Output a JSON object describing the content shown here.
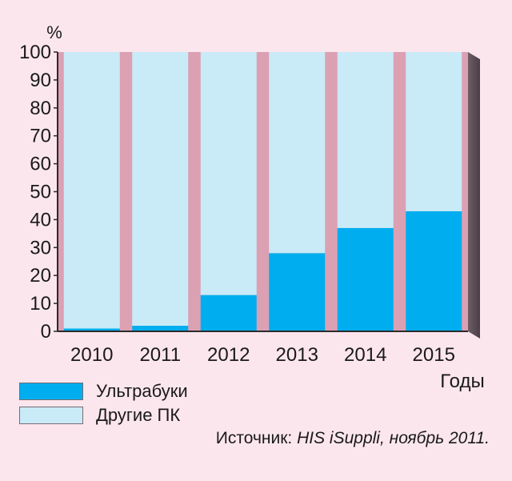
{
  "chart_data": {
    "type": "bar",
    "stacked": true,
    "percent_stacked": true,
    "categories": [
      "2010",
      "2011",
      "2012",
      "2013",
      "2014",
      "2015"
    ],
    "series": [
      {
        "name": "Ультрабуки",
        "values": [
          1,
          2,
          13,
          28,
          37,
          43
        ]
      },
      {
        "name": "Другие ПК",
        "values": [
          99,
          98,
          87,
          72,
          63,
          57
        ]
      }
    ],
    "ylim": [
      0,
      100
    ],
    "yticks": [
      0,
      10,
      20,
      30,
      40,
      50,
      60,
      70,
      80,
      90,
      100
    ],
    "ylabel": "%",
    "xlabel": "Годы",
    "grid": false,
    "legend_position": "bottom-left"
  },
  "colors": {
    "ultrabooks": "#00aeef",
    "other_pc": "#c9eaf7",
    "plot_background": "#dca0b3",
    "frame": "#2a2a2a",
    "background": "#fce6ee"
  },
  "source": {
    "prefix": "Источник: ",
    "detail": "HIS iSuppli, ноябрь 2011."
  }
}
